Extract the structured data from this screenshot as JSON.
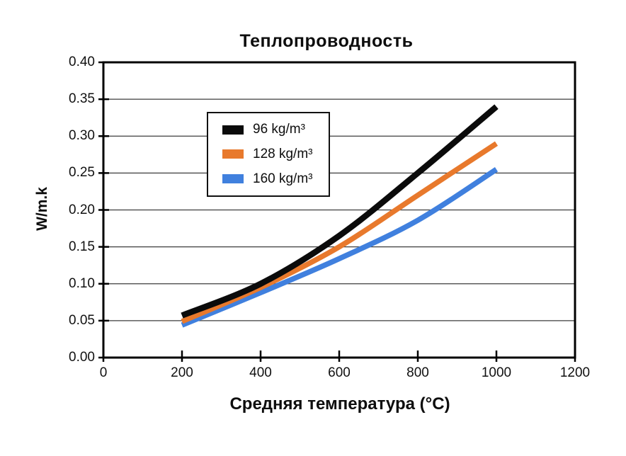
{
  "chart_data": {
    "type": "line",
    "title": "Теплопроводность",
    "xlabel": "Средняя температура (°C)",
    "ylabel": "W/m.k",
    "x": [
      200,
      400,
      600,
      800,
      1000
    ],
    "series": [
      {
        "name": "96 kg/m³",
        "color": "#0b0b0b",
        "values": [
          0.057,
          0.1,
          0.165,
          0.25,
          0.34
        ]
      },
      {
        "name": "128 kg/m³",
        "color": "#e8792c",
        "values": [
          0.049,
          0.095,
          0.15,
          0.22,
          0.29
        ]
      },
      {
        "name": "160 kg/m³",
        "color": "#4080de",
        "values": [
          0.044,
          0.088,
          0.134,
          0.186,
          0.255
        ]
      }
    ],
    "xlim": [
      0,
      1200
    ],
    "ylim": [
      0,
      0.4
    ],
    "x_ticks": [
      "0",
      "200",
      "400",
      "600",
      "800",
      "1000",
      "1200"
    ],
    "y_ticks": [
      "0.00",
      "0.05",
      "0.10",
      "0.15",
      "0.20",
      "0.25",
      "0.30",
      "0.35",
      "0.40"
    ],
    "grid": "horizontal-only",
    "legend_position": "upper-left-inside",
    "colors": {
      "grid": "#3d3d3d",
      "axis": "#000000",
      "background": "#ffffff"
    }
  }
}
